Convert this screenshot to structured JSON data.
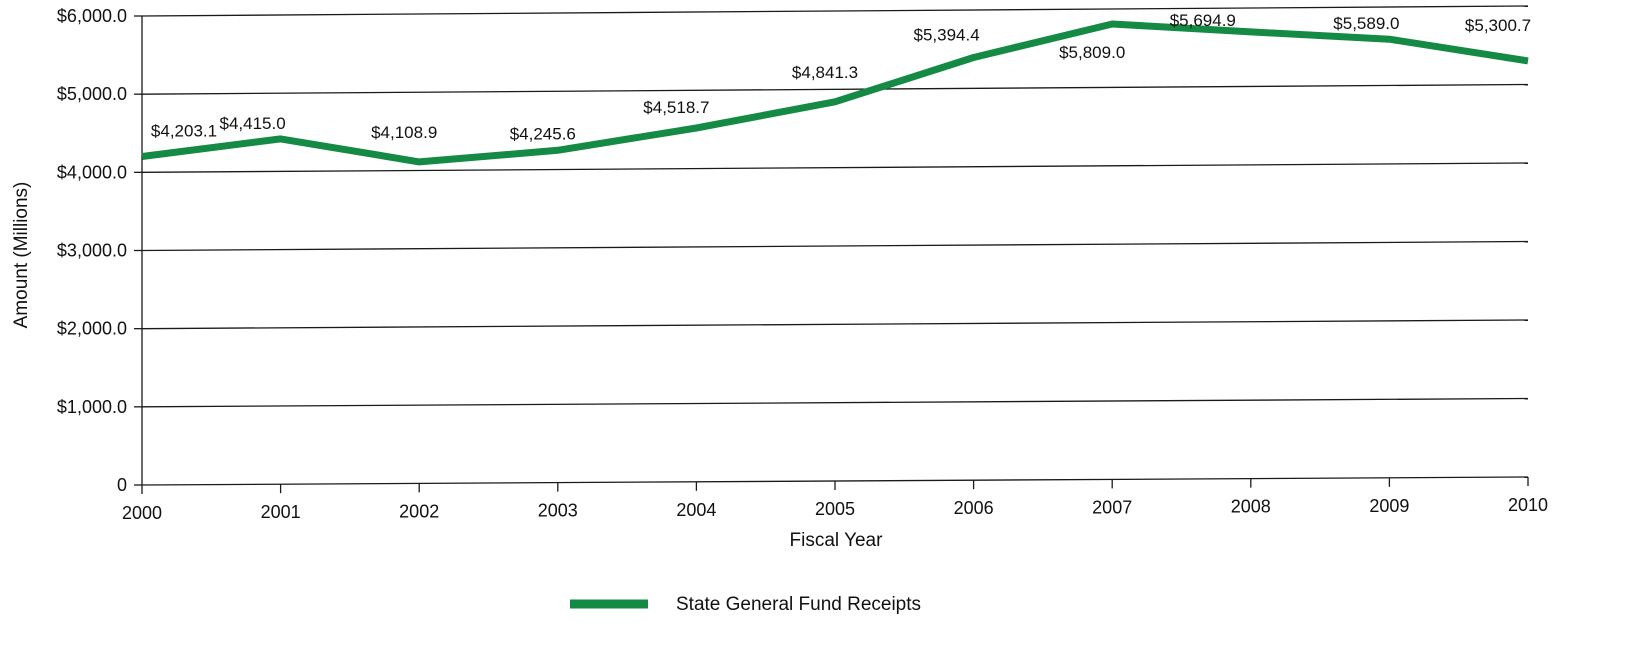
{
  "chart_data": {
    "type": "line",
    "title": "",
    "xlabel": "Fiscal Year",
    "ylabel": "Amount (Millions)",
    "categories": [
      "2000",
      "2001",
      "2002",
      "2003",
      "2004",
      "2005",
      "2006",
      "2007",
      "2008",
      "2009",
      "2010"
    ],
    "ylim": [
      0,
      6000
    ],
    "yticks": [
      0,
      1000,
      2000,
      3000,
      4000,
      5000,
      6000
    ],
    "ytick_labels": [
      "0",
      "$1,000.0",
      "$2,000.0",
      "$3,000.0",
      "$4,000.0",
      "$5,000.0",
      "$6,000.0"
    ],
    "grid": true,
    "legend_position": "bottom-center",
    "series": [
      {
        "name": "State General Fund Receipts",
        "color": "#148a45",
        "values": [
          4203.1,
          4415.0,
          4108.9,
          4245.6,
          4518.7,
          4841.3,
          5394.4,
          5809.0,
          5694.9,
          5589.0,
          5300.7
        ],
        "data_labels": [
          "$4,203.1",
          "$4,415.0",
          "$4,108.9",
          "$4,245.6",
          "$4,518.7",
          "$4,841.3",
          "$5,394.4",
          "$5,809.0",
          "$5,694.9",
          "$5,589.0",
          "$5,300.7"
        ]
      }
    ]
  }
}
